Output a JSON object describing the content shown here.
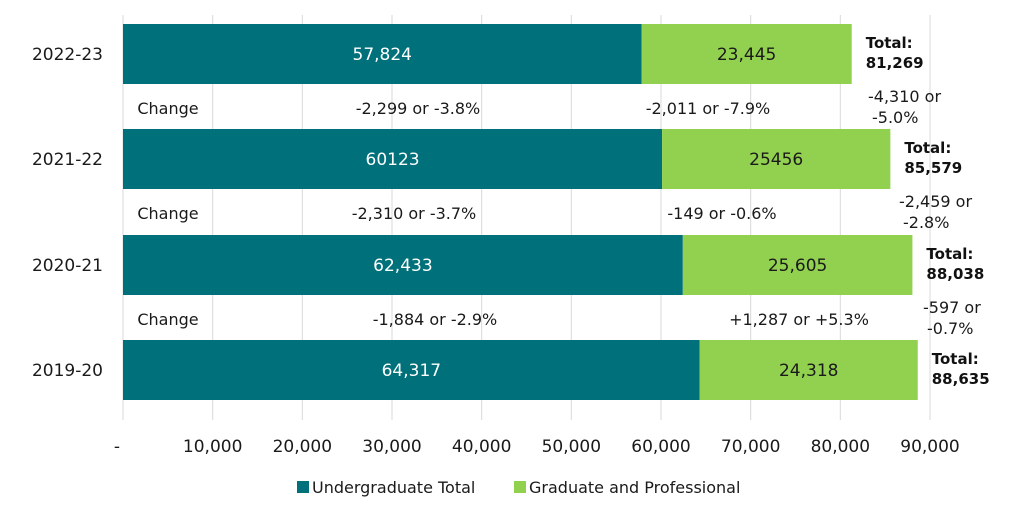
{
  "chart_data": {
    "type": "bar",
    "orientation": "horizontal",
    "stacked": true,
    "categories": [
      "2022-23",
      "2021-22",
      "2020-21",
      "2019-20"
    ],
    "series": [
      {
        "name": "Undergraduate Total",
        "color": "#00707a",
        "values": [
          57824,
          60123,
          62433,
          64317
        ],
        "labels": [
          "57,824",
          "60123",
          "62,433",
          "64,317"
        ]
      },
      {
        "name": "Graduate and Professional",
        "color": "#92d050",
        "values": [
          23445,
          25456,
          25605,
          24318
        ],
        "labels": [
          "23,445",
          "25456",
          "25,605",
          "24,318"
        ]
      }
    ],
    "totals": [
      {
        "heading": "Total:",
        "value": "81,269"
      },
      {
        "heading": "Total:",
        "value": "85,579"
      },
      {
        "heading": "Total:",
        "value": "88,038"
      },
      {
        "heading": "Total:",
        "value": "88,635"
      }
    ],
    "changes": [
      {
        "label": "Change",
        "undergrad": "-2,299 or -3.8%",
        "graduate": "-2,011 or  -7.9%",
        "total_line1": "-4,310 or",
        "total_line2": "-5.0%"
      },
      {
        "label": "Change",
        "undergrad": "-2,310 or -3.7%",
        "graduate": "-149 or  -0.6%",
        "total_line1": "-2,459 or",
        "total_line2": "-2.8%"
      },
      {
        "label": "Change",
        "undergrad": "-1,884 or -2.9%",
        "graduate": "+1,287 or  +5.3%",
        "total_line1": "-597 or",
        "total_line2": "-0.7%"
      }
    ],
    "xlim": [
      0,
      90000
    ],
    "xticks": [
      0,
      10000,
      20000,
      30000,
      40000,
      50000,
      60000,
      70000,
      80000,
      90000
    ],
    "xtick_labels": [
      "-",
      "10,000",
      "20,000",
      "30,000",
      "40,000",
      "50,000",
      "60,000",
      "70,000",
      "80,000",
      "90,000"
    ],
    "title": "",
    "xlabel": "",
    "ylabel": "",
    "grid": true,
    "legend_position": "bottom"
  }
}
